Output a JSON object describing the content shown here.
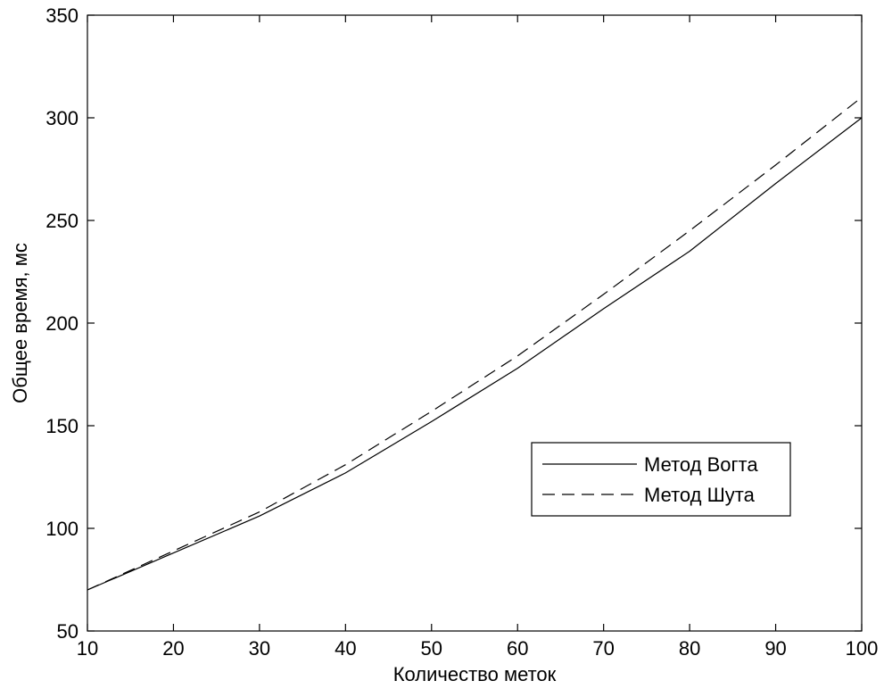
{
  "chart_data": {
    "type": "line",
    "title": "",
    "xlabel": "Количество меток",
    "ylabel": "Общее время, мс",
    "xlim": [
      10,
      100
    ],
    "ylim": [
      50,
      350
    ],
    "xticks": [
      10,
      20,
      30,
      40,
      50,
      60,
      70,
      80,
      90,
      100
    ],
    "yticks": [
      50,
      100,
      150,
      200,
      250,
      300,
      350
    ],
    "grid": false,
    "legend_position": "right",
    "x": [
      10,
      20,
      30,
      40,
      50,
      60,
      70,
      80,
      90,
      100
    ],
    "series": [
      {
        "name": "Метод Вогта",
        "style": "solid",
        "color": "#000000",
        "values": [
          70,
          88,
          106,
          127,
          152,
          178,
          207,
          235,
          268,
          300
        ]
      },
      {
        "name": "Метод Шута",
        "style": "dashed",
        "color": "#000000",
        "values": [
          70,
          89,
          108,
          131,
          157,
          184,
          214,
          245,
          277,
          310
        ]
      }
    ]
  }
}
